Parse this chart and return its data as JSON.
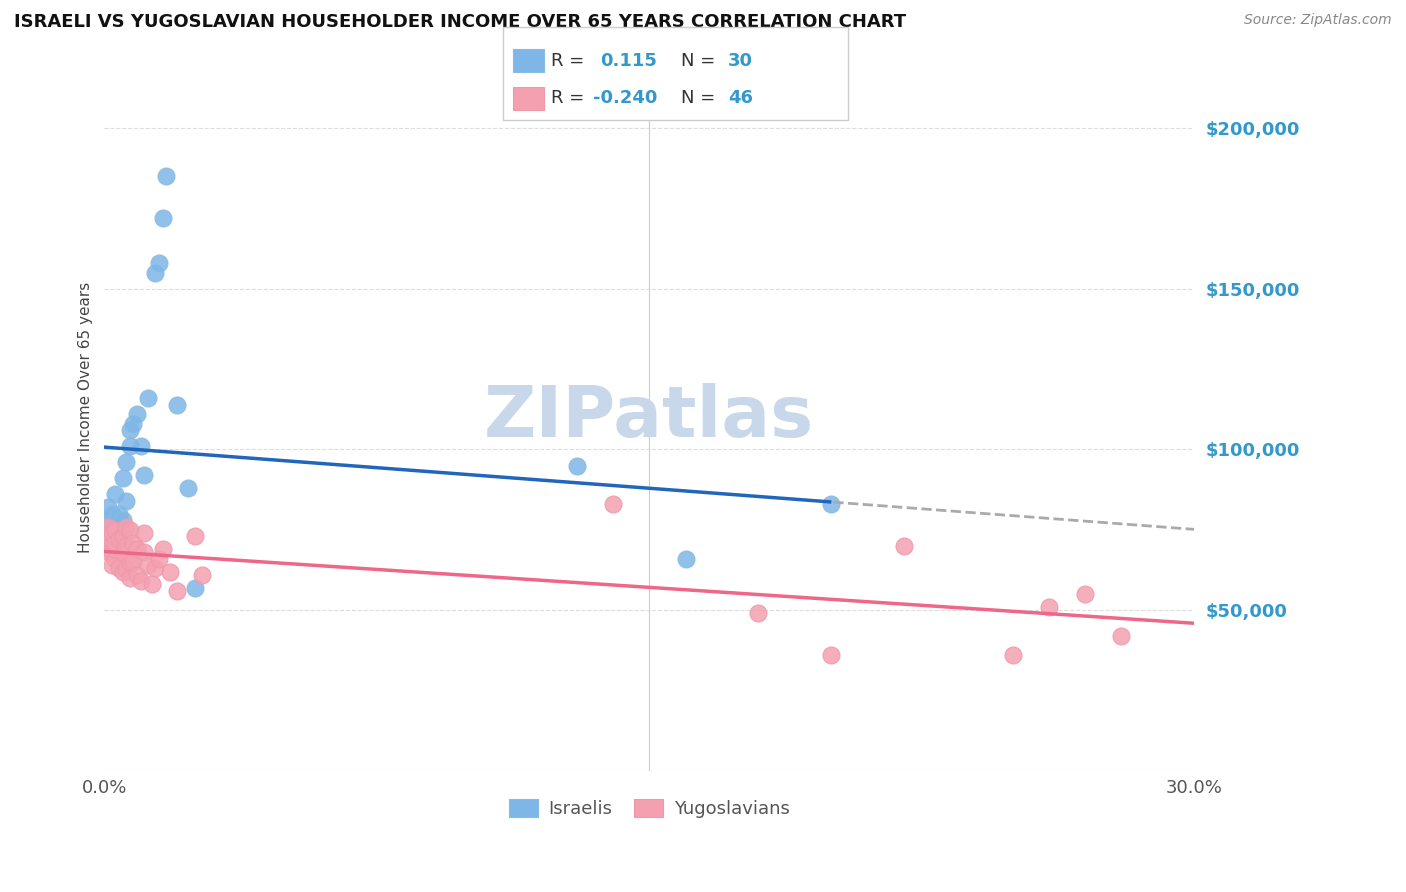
{
  "title": "ISRAELI VS YUGOSLAVIAN HOUSEHOLDER INCOME OVER 65 YEARS CORRELATION CHART",
  "source": "Source: ZipAtlas.com",
  "ylabel": "Householder Income Over 65 years",
  "legend_israelis": "Israelis",
  "legend_yugoslavians": "Yugoslavians",
  "r_israeli": 0.115,
  "n_israeli": 30,
  "r_yugoslavian": -0.24,
  "n_yugoslavian": 46,
  "xlim": [
    0.0,
    0.3
  ],
  "ylim": [
    0,
    220000
  ],
  "yticks": [
    50000,
    100000,
    150000,
    200000
  ],
  "ytick_labels": [
    "$50,000",
    "$100,000",
    "$150,000",
    "$200,000"
  ],
  "israeli_color": "#7EB6E8",
  "yugoslavian_color": "#F4A0B0",
  "israeli_line_color": "#2266BB",
  "yugoslavian_line_color": "#EE6688",
  "dashed_line_color": "#AAAAAA",
  "watermark_color": "#C8D8EA",
  "background_color": "#FFFFFF",
  "grid_color": "#DDDDDD",
  "israelis_x": [
    0.001,
    0.001,
    0.002,
    0.002,
    0.003,
    0.003,
    0.003,
    0.004,
    0.004,
    0.005,
    0.005,
    0.006,
    0.006,
    0.007,
    0.007,
    0.008,
    0.009,
    0.01,
    0.011,
    0.012,
    0.014,
    0.015,
    0.016,
    0.017,
    0.02,
    0.023,
    0.025,
    0.13,
    0.16,
    0.2
  ],
  "israelis_y": [
    78000,
    82000,
    75000,
    80000,
    72000,
    76000,
    86000,
    74000,
    80000,
    78000,
    91000,
    84000,
    96000,
    101000,
    106000,
    108000,
    111000,
    101000,
    92000,
    116000,
    155000,
    158000,
    172000,
    185000,
    114000,
    88000,
    57000,
    95000,
    66000,
    83000
  ],
  "yugoslavians_x": [
    0.001,
    0.001,
    0.001,
    0.002,
    0.002,
    0.002,
    0.002,
    0.003,
    0.003,
    0.003,
    0.003,
    0.004,
    0.004,
    0.005,
    0.005,
    0.005,
    0.006,
    0.006,
    0.006,
    0.007,
    0.007,
    0.007,
    0.008,
    0.008,
    0.009,
    0.009,
    0.01,
    0.011,
    0.011,
    0.012,
    0.013,
    0.014,
    0.015,
    0.016,
    0.018,
    0.02,
    0.025,
    0.027,
    0.14,
    0.18,
    0.2,
    0.22,
    0.25,
    0.26,
    0.27,
    0.28
  ],
  "yugoslavians_y": [
    76000,
    72000,
    68000,
    71000,
    68000,
    64000,
    74000,
    66000,
    69000,
    71000,
    75000,
    72000,
    63000,
    68000,
    73000,
    62000,
    63000,
    70000,
    76000,
    65000,
    75000,
    60000,
    65000,
    71000,
    61000,
    69000,
    59000,
    74000,
    68000,
    64000,
    58000,
    63000,
    66000,
    69000,
    62000,
    56000,
    73000,
    61000,
    83000,
    49000,
    36000,
    70000,
    36000,
    51000,
    55000,
    42000
  ]
}
